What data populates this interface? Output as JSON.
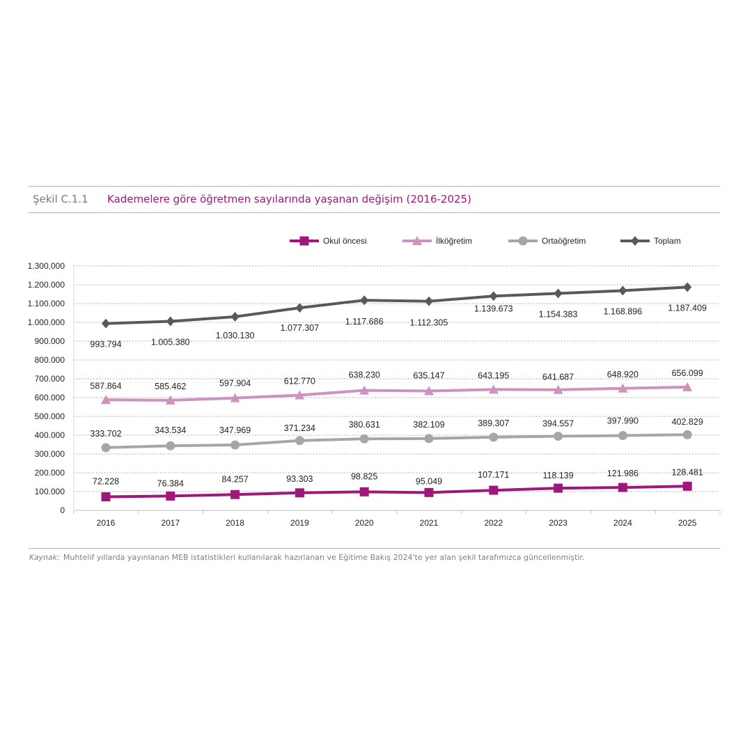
{
  "figure": {
    "number": "Şekil C.1.1",
    "title": "Kademelere göre öğretmen sayılarında yaşanan değişim (2016-2025)"
  },
  "source": {
    "label": "Kaynak:",
    "text": "Muhtelif yıllarda yayınlanan MEB istatistikleri kullanılarak hazırlanan ve Eğitime Bakış 2024'te yer alan şekil tarafımızca güncellenmiştir."
  },
  "chart_data": {
    "type": "line",
    "x": [
      "2016",
      "2017",
      "2018",
      "2019",
      "2020",
      "2021",
      "2022",
      "2023",
      "2024",
      "2025"
    ],
    "ylim": [
      0,
      1300000
    ],
    "y_ticks": [
      0,
      100000,
      200000,
      300000,
      400000,
      500000,
      600000,
      700000,
      800000,
      900000,
      1000000,
      1100000,
      1200000,
      1300000
    ],
    "y_tick_labels": [
      "0",
      "100.000",
      "200.000",
      "300.000",
      "400.000",
      "500.000",
      "600.000",
      "700.000",
      "800.000",
      "900.000",
      "1.000.000",
      "1.100.000",
      "1.200.000",
      "1.300,000"
    ],
    "grid": true,
    "legend_position": "top-right",
    "series": [
      {
        "name": "Okul öncesi",
        "color": "#a0177b",
        "marker": "square",
        "values": [
          72228,
          76384,
          84257,
          93303,
          98825,
          95049,
          107171,
          118139,
          121986,
          128481
        ],
        "labels": [
          "72.228",
          "76.384",
          "84.257",
          "93.303",
          "98.825",
          "95.049",
          "107.171",
          "118.139",
          "121.986",
          "128.481"
        ]
      },
      {
        "name": "İlköğretim",
        "color": "#cd92bf",
        "marker": "triangle",
        "values": [
          587864,
          585462,
          597904,
          612770,
          638230,
          635147,
          643195,
          641687,
          648920,
          656099
        ],
        "labels": [
          "587.864",
          "585.462",
          "597.904",
          "612.770",
          "638.230",
          "635.147",
          "643.195",
          "641.687",
          "648.920",
          "656.099"
        ]
      },
      {
        "name": "Ortaöğretim",
        "color": "#a6a6a6",
        "marker": "circle",
        "values": [
          333702,
          343534,
          347969,
          371234,
          380631,
          382109,
          389307,
          394557,
          397990,
          402829
        ],
        "labels": [
          "333.702",
          "343.534",
          "347.969",
          "371.234",
          "380.631",
          "382.109",
          "389.307",
          "394.557",
          "397.990",
          "402.829"
        ]
      },
      {
        "name": "Toplam",
        "color": "#595959",
        "marker": "diamond",
        "values": [
          993794,
          1005380,
          1030130,
          1077307,
          1117686,
          1112305,
          1139673,
          1154383,
          1168896,
          1187409
        ],
        "labels": [
          "993.794",
          "1.005.380",
          "1.030.130",
          "1.077.307",
          "1.117.686",
          "1.112.305",
          "1.139.673",
          "1.154.383",
          "1.168.896",
          "1.187.409"
        ]
      }
    ]
  }
}
